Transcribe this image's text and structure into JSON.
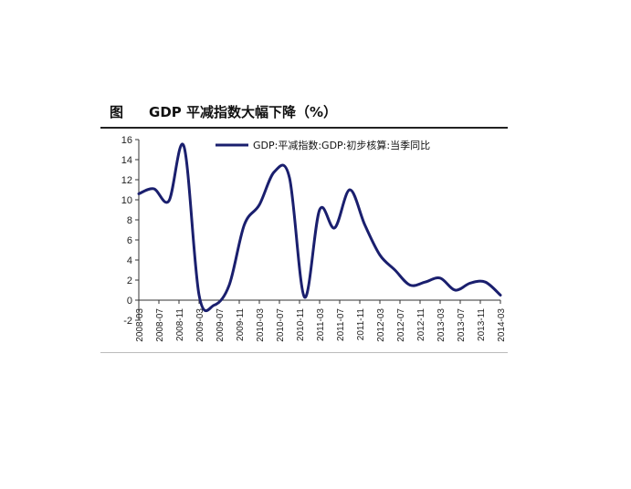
{
  "figure": {
    "label": "图"
  },
  "chart_data": {
    "type": "line",
    "title": "GDP 平减指数大幅下降（%）",
    "xlabel": "",
    "ylabel": "",
    "ylim": [
      -2,
      16
    ],
    "yticks": [
      -2,
      0,
      2,
      4,
      6,
      8,
      10,
      12,
      14,
      16
    ],
    "xtick_labels": [
      "2008-03",
      "2008-07",
      "2008-11",
      "2009-03",
      "2009-07",
      "2009-11",
      "2010-03",
      "2010-07",
      "2010-11",
      "2011-03",
      "2011-07",
      "2011-11",
      "2012-03",
      "2012-07",
      "2012-11",
      "2013-03",
      "2013-07",
      "2013-11",
      "2014-03"
    ],
    "legend_position": "top-center",
    "grid": false,
    "series": [
      {
        "name": "GDP:平减指数:GDP:初步核算:当季同比",
        "color": "#1a1f6e",
        "x": [
          "2008-03",
          "2008-06",
          "2008-09",
          "2008-12",
          "2009-03",
          "2009-06",
          "2009-09",
          "2009-12",
          "2010-03",
          "2010-06",
          "2010-09",
          "2010-12",
          "2011-03",
          "2011-06",
          "2011-09",
          "2011-12",
          "2012-03",
          "2012-06",
          "2012-09",
          "2012-12",
          "2013-03",
          "2013-06",
          "2013-09",
          "2013-12",
          "2014-03"
        ],
        "values": [
          10.6,
          11.1,
          9.9,
          15.3,
          0.5,
          -0.5,
          1.5,
          7.5,
          9.5,
          12.8,
          12.2,
          0.3,
          9.0,
          7.2,
          11.0,
          7.5,
          4.5,
          3.0,
          1.5,
          1.8,
          2.2,
          1.0,
          1.7,
          1.8,
          0.5
        ]
      }
    ]
  }
}
